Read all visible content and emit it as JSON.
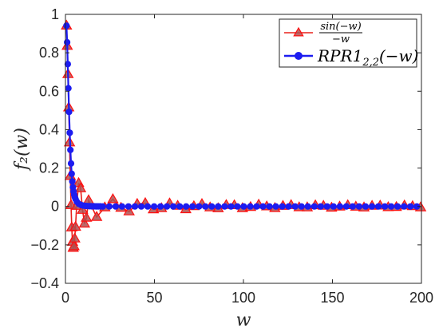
{
  "chart_data": {
    "type": "line",
    "xlabel": "w",
    "ylabel": "f₂(w)",
    "xlim": [
      0,
      200
    ],
    "ylim": [
      -0.4,
      1
    ],
    "xticks": [
      0,
      50,
      100,
      150,
      200
    ],
    "yticks": [
      -0.4,
      -0.2,
      0,
      0.2,
      0.4,
      0.6,
      0.8,
      1
    ],
    "xtick_labels": [
      "0",
      "50",
      "100",
      "150",
      "200"
    ],
    "ytick_labels": [
      "−0.4",
      "−0.2",
      "0",
      "0.2",
      "0.4",
      "0.6",
      "0.8",
      "1"
    ],
    "grid": false,
    "legend_position": "top-right",
    "series": [
      {
        "name": "sin(−w) / −w",
        "legend_num": "sin(−w)",
        "legend_den": "−w",
        "marker": "triangle",
        "color": "#e8201c",
        "function": "sin(w)/w"
      },
      {
        "name": "RPR1₂,₂(−w)",
        "legend_base": "RPR1",
        "legend_sub": "2,2",
        "legend_suffix": "(−w)",
        "marker": "circle",
        "color": "#1c1cf0",
        "function": "approximant"
      }
    ]
  }
}
